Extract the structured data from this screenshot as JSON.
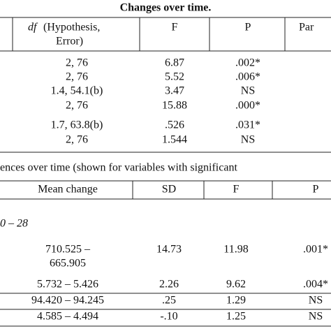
{
  "title": "Changes over time.",
  "table1": {
    "header": {
      "df_symbol": "df",
      "df_line1": "(Hypothesis,",
      "df_line2": "Error)",
      "f": "F",
      "p": "P",
      "partial": "Par"
    },
    "rows": [
      [
        "2, 76",
        "6.87",
        ".002*"
      ],
      [
        "2, 76",
        "5.52",
        ".006*"
      ],
      [
        "1.4, 54.1(b)",
        "3.47",
        "NS"
      ],
      [
        "2, 76",
        "15.88",
        ".000*"
      ],
      [
        "1.7, 63.8(b)",
        ".526",
        ".031*"
      ],
      [
        "2, 76",
        "1.544",
        "NS"
      ]
    ]
  },
  "table2": {
    "title": "ences over time (shown for variables with significant",
    "header": [
      "Mean change",
      "SD",
      "F",
      "P"
    ],
    "subheading": "0 – 28",
    "rows": [
      [
        "710.525 –",
        "665.905",
        "14.73",
        "11.98",
        ".001*"
      ],
      [
        "5.732 – 5.426",
        "",
        "2.26",
        "9.62",
        ".004*"
      ],
      [
        "94.420 – 94.245",
        "",
        ".25",
        "1.29",
        "NS"
      ],
      [
        "4.585 – 4.494",
        "",
        "-.10",
        "1.25",
        "NS"
      ]
    ]
  }
}
